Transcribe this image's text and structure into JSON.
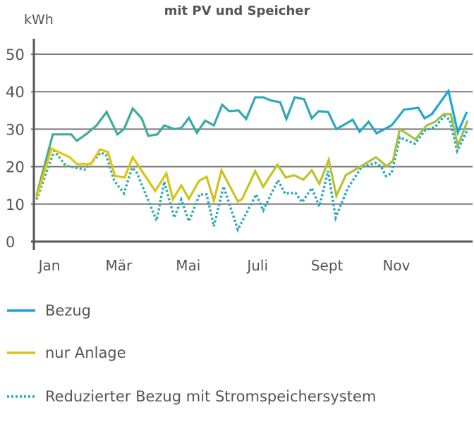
{
  "chart_data": {
    "type": "line",
    "title": "mit PV und Speicher",
    "ylabel": "kWh",
    "xlabel": "",
    "ylim": [
      0,
      50
    ],
    "xlim": [
      0.63,
      13.1
    ],
    "yticks": [
      0,
      10,
      20,
      30,
      40,
      50
    ],
    "xticks": [
      {
        "month": 1,
        "label": "Jan"
      },
      {
        "month": 3,
        "label": "Mär"
      },
      {
        "month": 5,
        "label": "Mai"
      },
      {
        "month": 7,
        "label": "Juli"
      },
      {
        "month": 9,
        "label": "Sept"
      },
      {
        "month": 11,
        "label": "Nov"
      }
    ],
    "grid": "horizontal",
    "legend_position": "bottom",
    "series": [
      {
        "name": "Bezug",
        "style": "solid",
        "colors": [
          "#4aab8f",
          "#1aa6d8"
        ],
        "points": [
          [
            0.63,
            12.3
          ],
          [
            1.1,
            28.6
          ],
          [
            1.63,
            28.6
          ],
          [
            1.79,
            26.9
          ],
          [
            2.08,
            28.8
          ],
          [
            2.36,
            31
          ],
          [
            2.65,
            34.6
          ],
          [
            2.96,
            28.6
          ],
          [
            3.15,
            30
          ],
          [
            3.4,
            35.5
          ],
          [
            3.66,
            32.9
          ],
          [
            3.85,
            28.2
          ],
          [
            4.11,
            28.6
          ],
          [
            4.31,
            31
          ],
          [
            4.6,
            30
          ],
          [
            4.8,
            30.3
          ],
          [
            5.02,
            33
          ],
          [
            5.25,
            29
          ],
          [
            5.49,
            32.3
          ],
          [
            5.74,
            31
          ],
          [
            5.98,
            36.5
          ],
          [
            6.18,
            34.8
          ],
          [
            6.45,
            35
          ],
          [
            6.67,
            32.7
          ],
          [
            6.93,
            38.5
          ],
          [
            7.16,
            38.5
          ],
          [
            7.4,
            37.6
          ],
          [
            7.65,
            37.2
          ],
          [
            7.83,
            32.7
          ],
          [
            8.07,
            38.5
          ],
          [
            8.34,
            38
          ],
          [
            8.56,
            32.9
          ],
          [
            8.76,
            34.8
          ],
          [
            9.03,
            34.6
          ],
          [
            9.27,
            30
          ],
          [
            9.74,
            32.5
          ],
          [
            9.94,
            29.3
          ],
          [
            10.2,
            32
          ],
          [
            10.43,
            28.9
          ],
          [
            10.86,
            31
          ],
          [
            11.22,
            35.2
          ],
          [
            11.63,
            35.7
          ],
          [
            11.81,
            32.9
          ],
          [
            12.02,
            34
          ],
          [
            12.5,
            40.2
          ],
          [
            12.77,
            29.1
          ],
          [
            13.03,
            34.6
          ]
        ]
      },
      {
        "name": "nur Anlage",
        "style": "solid",
        "colors": [
          "#f0c400",
          "#9cc246"
        ],
        "points": [
          [
            0.63,
            11.8
          ],
          [
            1.06,
            24.8
          ],
          [
            1.59,
            22.5
          ],
          [
            1.79,
            20.7
          ],
          [
            2.2,
            20.7
          ],
          [
            2.46,
            24.6
          ],
          [
            2.69,
            23.9
          ],
          [
            2.89,
            17.5
          ],
          [
            3.17,
            17.1
          ],
          [
            3.4,
            22.5
          ],
          [
            4.05,
            13.5
          ],
          [
            4.37,
            18.2
          ],
          [
            4.56,
            11.3
          ],
          [
            4.8,
            15
          ],
          [
            5.02,
            11.4
          ],
          [
            5.31,
            16.2
          ],
          [
            5.53,
            17.3
          ],
          [
            5.74,
            10.9
          ],
          [
            5.96,
            19
          ],
          [
            6.43,
            10.7
          ],
          [
            6.55,
            11.3
          ],
          [
            6.93,
            18.8
          ],
          [
            7.16,
            14.6
          ],
          [
            7.57,
            20.5
          ],
          [
            7.81,
            17.1
          ],
          [
            8.05,
            17.7
          ],
          [
            8.32,
            16.5
          ],
          [
            8.56,
            19
          ],
          [
            8.78,
            15.4
          ],
          [
            9.05,
            21.8
          ],
          [
            9.27,
            12.2
          ],
          [
            9.54,
            17.7
          ],
          [
            9.94,
            19.9
          ],
          [
            10.41,
            22.5
          ],
          [
            10.72,
            20.1
          ],
          [
            10.9,
            21.6
          ],
          [
            11.1,
            30
          ],
          [
            11.55,
            27.3
          ],
          [
            11.87,
            31
          ],
          [
            12.12,
            32
          ],
          [
            12.36,
            34
          ],
          [
            12.57,
            34
          ],
          [
            12.77,
            25.5
          ],
          [
            13.05,
            32.3
          ]
        ]
      },
      {
        "name": "Reduzierter Bezug mit Stromspeichersystem",
        "style": "dotted",
        "colors": [
          "#3fae9e",
          "#1aa6d8"
        ],
        "points": [
          [
            0.63,
            11.2
          ],
          [
            1.14,
            24.2
          ],
          [
            1.47,
            20.3
          ],
          [
            1.75,
            19.7
          ],
          [
            2.02,
            19.2
          ],
          [
            2.48,
            23.7
          ],
          [
            2.63,
            23.2
          ],
          [
            2.87,
            16.2
          ],
          [
            3.15,
            12.9
          ],
          [
            3.38,
            19.7
          ],
          [
            3.5,
            18.8
          ],
          [
            4.09,
            5.6
          ],
          [
            4.31,
            16
          ],
          [
            4.6,
            6.4
          ],
          [
            4.8,
            11.2
          ],
          [
            5.02,
            5.4
          ],
          [
            5.33,
            12.6
          ],
          [
            5.53,
            12.6
          ],
          [
            5.74,
            4.1
          ],
          [
            6.02,
            14.7
          ],
          [
            6.43,
            3.2
          ],
          [
            6.96,
            12.6
          ],
          [
            7.16,
            8.3
          ],
          [
            7.59,
            16.4
          ],
          [
            7.79,
            12.8
          ],
          [
            8.09,
            13
          ],
          [
            8.28,
            10.5
          ],
          [
            8.56,
            14.3
          ],
          [
            8.78,
            9.4
          ],
          [
            9.03,
            18.8
          ],
          [
            9.25,
            6.4
          ],
          [
            9.6,
            14.3
          ],
          [
            10.0,
            19.9
          ],
          [
            10.39,
            21
          ],
          [
            10.55,
            20.1
          ],
          [
            10.7,
            17.5
          ],
          [
            10.86,
            18.2
          ],
          [
            11.1,
            27.8
          ],
          [
            11.53,
            26.1
          ],
          [
            11.83,
            29.7
          ],
          [
            12.12,
            30.6
          ],
          [
            12.38,
            33.5
          ],
          [
            12.54,
            32.5
          ],
          [
            12.75,
            24.2
          ],
          [
            13.07,
            30.2
          ]
        ]
      }
    ]
  }
}
